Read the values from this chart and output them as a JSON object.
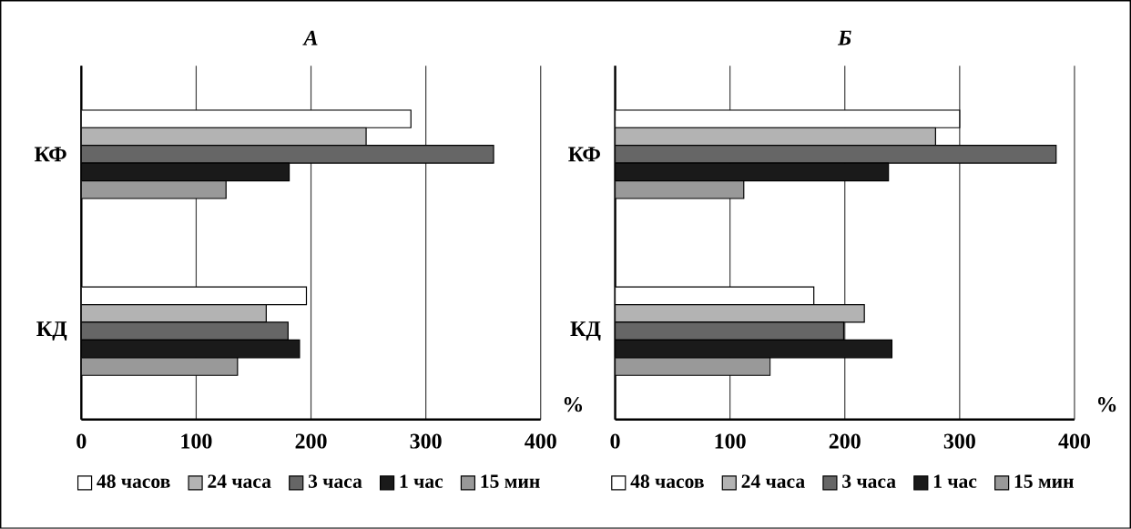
{
  "chart_data": [
    {
      "type": "bar",
      "orientation": "horizontal",
      "title": "А",
      "xlabel": "%",
      "categories": [
        "КФ",
        "КД"
      ],
      "xlim": [
        0,
        400
      ],
      "xticks": [
        0,
        100,
        200,
        300,
        400
      ],
      "grid": "x",
      "legend": "bottom",
      "series": [
        {
          "name": "48 часов",
          "color": "#ffffff",
          "values": [
            287,
            196
          ]
        },
        {
          "name": "24 часа",
          "color": "#b3b3b3",
          "values": [
            248,
            161
          ]
        },
        {
          "name": "3 часа",
          "color": "#666666",
          "values": [
            359,
            180
          ]
        },
        {
          "name": "1 час",
          "color": "#1a1a1a",
          "values": [
            181,
            190
          ]
        },
        {
          "name": "15 мин",
          "color": "#999999",
          "values": [
            126,
            136
          ]
        }
      ]
    },
    {
      "type": "bar",
      "orientation": "horizontal",
      "title": "Б",
      "xlabel": "%",
      "categories": [
        "КФ",
        "КД"
      ],
      "xlim": [
        0,
        400
      ],
      "xticks": [
        0,
        100,
        200,
        300,
        400
      ],
      "grid": "x",
      "legend": "bottom",
      "series": [
        {
          "name": "48 часов",
          "color": "#ffffff",
          "values": [
            300,
            173
          ]
        },
        {
          "name": "24 часа",
          "color": "#b3b3b3",
          "values": [
            279,
            217
          ]
        },
        {
          "name": "3 часа",
          "color": "#666666",
          "values": [
            384,
            199
          ]
        },
        {
          "name": "1 час",
          "color": "#1a1a1a",
          "values": [
            238,
            241
          ]
        },
        {
          "name": "15 мин",
          "color": "#999999",
          "values": [
            112,
            135
          ]
        }
      ]
    }
  ]
}
